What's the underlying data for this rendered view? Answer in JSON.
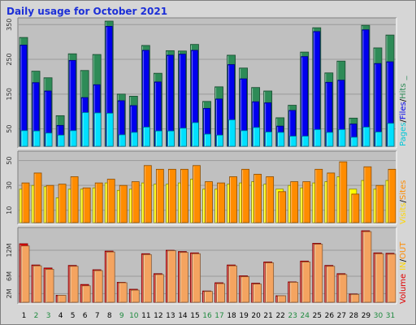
{
  "title": "Daily usage for October 2021",
  "chart_data": [
    {
      "type": "bar",
      "panel": "top",
      "categories": [
        "1",
        "2",
        "3",
        "4",
        "5",
        "6",
        "7",
        "8",
        "9",
        "10",
        "11",
        "12",
        "13",
        "14",
        "15",
        "16",
        "17",
        "18",
        "19",
        "20",
        "21",
        "22",
        "23",
        "24",
        "25",
        "26",
        "27",
        "28",
        "29",
        "30",
        "31"
      ],
      "weekend_days": [
        "2",
        "3",
        "9",
        "10",
        "16",
        "17",
        "23",
        "24",
        "30",
        "31"
      ],
      "yticks": [
        "50",
        "150",
        "250",
        "350"
      ],
      "ylim": [
        0,
        360
      ],
      "series": [
        {
          "name": "Hits",
          "color": "#2e8b57",
          "values": [
            313,
            216,
            197,
            88,
            266,
            218,
            264,
            360,
            150,
            144,
            290,
            210,
            275,
            274,
            293,
            129,
            171,
            262,
            225,
            169,
            159,
            82,
            118,
            271,
            341,
            211,
            245,
            81,
            348,
            283,
            320
          ]
        },
        {
          "name": "Files",
          "color": "#0000ee",
          "values": [
            291,
            183,
            159,
            60,
            247,
            140,
            177,
            345,
            131,
            117,
            276,
            185,
            262,
            265,
            276,
            109,
            136,
            235,
            194,
            128,
            125,
            58,
            103,
            258,
            330,
            184,
            190,
            64,
            335,
            238,
            243
          ]
        },
        {
          "name": "Pages",
          "color": "#00e0ff",
          "values": [
            45,
            44,
            38,
            32,
            45,
            97,
            96,
            95,
            33,
            40,
            55,
            44,
            44,
            52,
            68,
            35,
            32,
            76,
            45,
            54,
            41,
            40,
            29,
            29,
            48,
            40,
            48,
            26,
            55,
            41,
            66
          ]
        }
      ]
    },
    {
      "type": "bar",
      "panel": "middle",
      "categories": [
        "1",
        "2",
        "3",
        "4",
        "5",
        "6",
        "7",
        "8",
        "9",
        "10",
        "11",
        "12",
        "13",
        "14",
        "15",
        "16",
        "17",
        "18",
        "19",
        "20",
        "21",
        "22",
        "23",
        "24",
        "25",
        "26",
        "27",
        "28",
        "29",
        "30",
        "31"
      ],
      "yticks": [
        "10",
        "30",
        "50"
      ],
      "ylim": [
        0,
        55
      ],
      "series": [
        {
          "name": "Sites",
          "color": "#ffff00",
          "values": [
            27,
            30,
            29,
            20,
            27,
            27,
            28,
            32,
            26,
            27,
            32,
            31,
            31,
            32,
            35,
            27,
            27,
            31,
            32,
            33,
            31,
            27,
            30,
            28,
            32,
            33,
            37,
            27,
            34,
            27,
            34
          ]
        },
        {
          "name": "Visits",
          "color": "#ff8c00",
          "values": [
            32,
            40,
            30,
            31,
            37,
            28,
            32,
            35,
            30,
            33,
            46,
            43,
            43,
            43,
            46,
            33,
            32,
            37,
            43,
            39,
            37,
            25,
            33,
            33,
            43,
            40,
            49,
            23,
            45,
            30,
            43
          ]
        }
      ]
    },
    {
      "type": "bar",
      "panel": "bottom",
      "categories": [
        "1",
        "2",
        "3",
        "4",
        "5",
        "6",
        "7",
        "8",
        "9",
        "10",
        "11",
        "12",
        "13",
        "14",
        "15",
        "16",
        "17",
        "18",
        "19",
        "20",
        "21",
        "22",
        "23",
        "24",
        "25",
        "26",
        "27",
        "28",
        "29",
        "30",
        "31"
      ],
      "yticks": [
        "2M",
        "6M",
        "12M"
      ],
      "ylim": [
        0,
        16.5
      ],
      "series": [
        {
          "name": "Volume",
          "color": "#e00000",
          "values": [
            13.5,
            8.6,
            7.9,
            1.6,
            8.5,
            4.1,
            7.5,
            11.8,
            4.6,
            3.0,
            11.2,
            6.6,
            12.0,
            11.7,
            11.4,
            2.6,
            4.5,
            8.6,
            6.1,
            4.4,
            9.3,
            1.5,
            4.7,
            9.5,
            13.6,
            8.5,
            6.6,
            1.9,
            16.5,
            11.4,
            11.3
          ]
        },
        {
          "name": "KBytes OUT",
          "color": "#f4a460",
          "values": [
            13.0,
            8.4,
            7.6,
            1.6,
            8.3,
            3.8,
            7.3,
            11.6,
            4.5,
            2.8,
            11.0,
            6.4,
            11.9,
            11.5,
            11.2,
            2.5,
            4.3,
            8.4,
            5.9,
            4.2,
            9.1,
            1.5,
            4.6,
            9.3,
            13.4,
            8.3,
            6.4,
            1.8,
            16.3,
            11.2,
            11.1
          ]
        }
      ]
    }
  ],
  "legend": {
    "top": [
      {
        "text": "Pages",
        "color": "#00c8d8"
      },
      {
        "text": "/",
        "color": "#000000"
      },
      {
        "text": "Files",
        "color": "#0000ee"
      },
      {
        "text": "/",
        "color": "#000000"
      },
      {
        "text": "Hits",
        "color": "#2e8b57"
      },
      {
        "text": "_",
        "color": "#2e8b57"
      }
    ],
    "middle": [
      {
        "text": "Visits",
        "color": "#ffd700"
      },
      {
        "text": "/",
        "color": "#000000"
      },
      {
        "text": "Sites",
        "color": "#ff8c00"
      }
    ],
    "bottom": [
      {
        "text": "Volume",
        "color": "#e00000"
      },
      {
        "text": "IN",
        "color": "#ffd700"
      },
      {
        "text": "/",
        "color": "#000000"
      },
      {
        "text": "OUT",
        "color": "#ff8c00"
      }
    ]
  }
}
